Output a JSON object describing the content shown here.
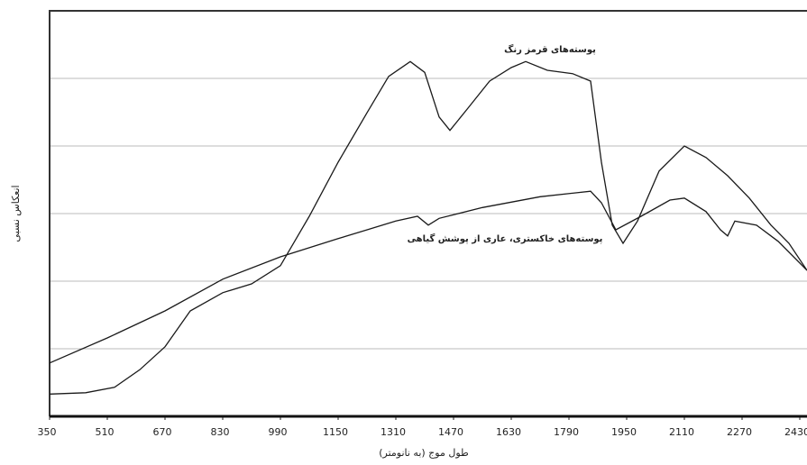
{
  "chart_data": {
    "type": "line",
    "x_label": "طول موج (به نانومتر)",
    "y_label": "انعکاس نسبی",
    "xlim": [
      350,
      2450
    ],
    "xticks": [
      350,
      510,
      670,
      830,
      990,
      1150,
      1310,
      1470,
      1630,
      1790,
      1950,
      2110,
      2270,
      2430
    ],
    "ylim": [
      0,
      6
    ],
    "yticks": [
      1,
      2,
      3,
      4,
      5
    ],
    "ytick_labels": false,
    "grid": true,
    "series": [
      {
        "name": "پوسته‌های قرمز رنگ",
        "color": "#1a1a1a",
        "x": [
          350,
          450,
          530,
          600,
          670,
          740,
          830,
          910,
          990,
          1070,
          1150,
          1230,
          1290,
          1350,
          1390,
          1430,
          1460,
          1510,
          1570,
          1630,
          1670,
          1730,
          1800,
          1850,
          1880,
          1910,
          1940,
          1980,
          2040,
          2110,
          2170,
          2230,
          2290,
          2350,
          2400,
          2450
        ],
        "values": [
          0.33,
          0.35,
          0.43,
          0.69,
          1.03,
          1.56,
          1.83,
          1.96,
          2.23,
          2.96,
          3.76,
          4.49,
          5.03,
          5.25,
          5.09,
          4.43,
          4.23,
          4.56,
          4.96,
          5.16,
          5.25,
          5.12,
          5.07,
          4.96,
          3.76,
          2.83,
          2.56,
          2.89,
          3.63,
          4.0,
          3.83,
          3.56,
          3.23,
          2.83,
          2.56,
          2.16
        ]
      },
      {
        "name": "پوسته‌های خاکستری، عاری از پوشش گیاهی",
        "color": "#1a1a1a",
        "x": [
          350,
          510,
          670,
          830,
          990,
          1150,
          1310,
          1370,
          1400,
          1430,
          1550,
          1710,
          1850,
          1880,
          1920,
          1990,
          2070,
          2110,
          2170,
          2210,
          2230,
          2250,
          2310,
          2370,
          2450
        ],
        "values": [
          0.79,
          1.16,
          1.56,
          2.03,
          2.36,
          2.63,
          2.89,
          2.96,
          2.83,
          2.93,
          3.09,
          3.25,
          3.33,
          3.16,
          2.76,
          2.96,
          3.2,
          3.23,
          3.03,
          2.76,
          2.67,
          2.89,
          2.83,
          2.59,
          2.16
        ]
      }
    ]
  }
}
